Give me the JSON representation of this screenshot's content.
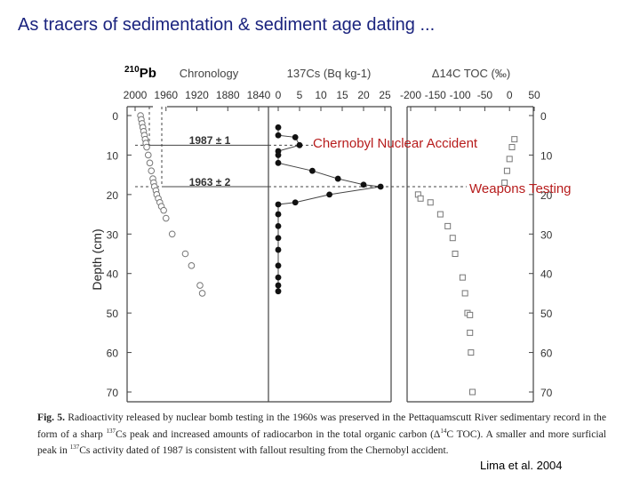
{
  "title": "As tracers of sedimentation & sediment age dating ...",
  "pb_label": {
    "sup": "210",
    "text": "Pb"
  },
  "chart_data": [
    {
      "type": "scatter",
      "title": "Chronology",
      "ylabel": "Depth (cm)",
      "xlim": [
        2000,
        1840
      ],
      "x_ticks": [
        "2000",
        "1960",
        "1920",
        "1880",
        "1840"
      ],
      "ylim": [
        70,
        0
      ],
      "y_ticks": [
        "0",
        "10",
        "20",
        "30",
        "40",
        "50",
        "60",
        "70"
      ],
      "grid": false,
      "annotations": [
        "1987 ± 1",
        "1963 ± 2"
      ],
      "series": [
        {
          "points": [
            [
              1993,
              0
            ],
            [
              1992,
              1
            ],
            [
              1991,
              2
            ],
            [
              1990,
              3
            ],
            [
              1989,
              4
            ],
            [
              1988,
              5
            ],
            [
              1987,
              6
            ],
            [
              1986,
              7
            ],
            [
              1985,
              8
            ],
            [
              1983,
              10
            ],
            [
              1981,
              12
            ],
            [
              1979,
              14
            ],
            [
              1977,
              16
            ],
            [
              1976,
              17
            ],
            [
              1975,
              18
            ],
            [
              1973,
              19
            ],
            [
              1972,
              20
            ],
            [
              1970,
              21
            ],
            [
              1968,
              22
            ],
            [
              1966,
              23
            ],
            [
              1963,
              24
            ],
            [
              1960,
              26
            ],
            [
              1952,
              30
            ],
            [
              1935,
              35
            ],
            [
              1927,
              38
            ],
            [
              1916,
              43
            ],
            [
              1913,
              45
            ]
          ]
        }
      ]
    },
    {
      "type": "line",
      "title": "137Cs (Bq kg-1)",
      "xlim": [
        0,
        25
      ],
      "x_ticks": [
        "0",
        "5",
        "10",
        "15",
        "20",
        "25"
      ],
      "grid": false,
      "series": [
        {
          "points": [
            [
              0,
              3
            ],
            [
              0,
              5
            ],
            [
              4,
              5.5
            ],
            [
              5,
              7.5
            ],
            [
              0,
              9
            ],
            [
              0,
              10
            ],
            [
              0,
              12
            ],
            [
              8,
              14
            ],
            [
              14,
              16
            ],
            [
              20,
              17.5
            ],
            [
              24,
              18
            ],
            [
              12,
              20
            ],
            [
              4,
              22
            ],
            [
              0,
              22.5
            ],
            [
              0,
              25
            ],
            [
              0,
              28
            ],
            [
              0,
              31
            ],
            [
              0,
              34
            ],
            [
              0,
              38
            ],
            [
              0,
              41
            ],
            [
              0,
              43
            ],
            [
              0,
              44.5
            ]
          ]
        }
      ]
    },
    {
      "type": "scatter",
      "title": "Δ14C TOC (‰)",
      "xlim": [
        -250,
        50
      ],
      "x_ticks": [
        "-200",
        "-150",
        "-100",
        "-50",
        "0",
        "50"
      ],
      "y_ticks": [
        "0",
        "10",
        "20",
        "30",
        "40",
        "50",
        "60",
        "70"
      ],
      "grid": false,
      "series": [
        {
          "points": [
            [
              10,
              6
            ],
            [
              5,
              8
            ],
            [
              0,
              11
            ],
            [
              -5,
              14
            ],
            [
              -10,
              17
            ],
            [
              -185,
              20
            ],
            [
              -180,
              21
            ],
            [
              -160,
              22
            ],
            [
              -140,
              25
            ],
            [
              -125,
              28
            ],
            [
              -115,
              31
            ],
            [
              -110,
              35
            ],
            [
              -95,
              41
            ],
            [
              -90,
              45
            ],
            [
              -85,
              50
            ],
            [
              -80,
              50.5
            ],
            [
              -80,
              55
            ],
            [
              -78,
              60
            ],
            [
              -75,
              70
            ]
          ]
        }
      ]
    }
  ],
  "annotations": {
    "chernobyl": "Chernobyl Nuclear Accident",
    "weapons": "Weapons Testing"
  },
  "caption": {
    "fig": "Fig. 5.",
    "part1": " Radioactivity released by nuclear bomb testing in the 1960s was preserved in the Pettaquamscutt River sedimentary record in the form of a sharp ",
    "sup1": "137",
    "part2": "Cs peak and increased amounts of radiocarbon in the total organic carbon (Δ",
    "sup2": "14",
    "part3": "C TOC). A smaller and more surficial peak in ",
    "sup3": "137",
    "part4": "Cs activity dated of 1987 is consistent with fallout resulting from the Chernobyl accident."
  },
  "citation": "Lima et al. 2004",
  "colors": {
    "title": "#1a237e",
    "annotation": "#b71c1c"
  }
}
